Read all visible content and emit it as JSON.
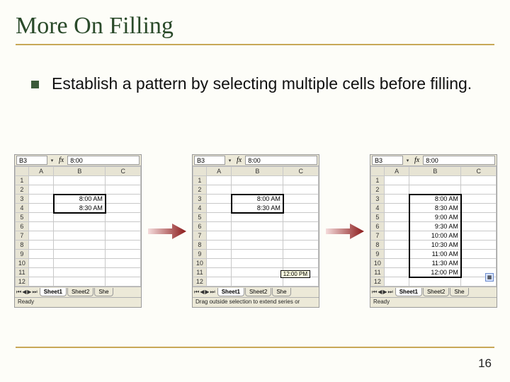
{
  "title": "More On Filling",
  "bullet": "Establish a pattern by selecting multiple cells before filling.",
  "page_number": "16",
  "colors": {
    "title": "#2a4a2a",
    "rule": "#c8a858",
    "bullet_marker": "#3a5a3a",
    "slide_bg": "#fdfdf8",
    "sheet_chrome": "#ece9d8",
    "grid_line": "#c8c8c8",
    "arrow": "#8b1a1a",
    "tooltip_bg": "#ffffe1"
  },
  "arrow": {
    "color": "#8b1a1a",
    "width": 54,
    "height": 26
  },
  "sheet_common": {
    "name_box": "B3",
    "fx_value": "8:00",
    "col_headers": [
      "A",
      "B",
      "C"
    ],
    "row_headers": [
      "1",
      "2",
      "3",
      "4",
      "5",
      "6",
      "7",
      "8",
      "9",
      "10",
      "11",
      "12"
    ],
    "tabs": [
      "Sheet1",
      "Sheet2",
      "She"
    ],
    "active_tab": "Sheet1",
    "tab_nav": [
      "⏮",
      "◀",
      "▶",
      "⏭"
    ]
  },
  "sheet1": {
    "status": "Ready",
    "selection": {
      "type": "solid",
      "rows": [
        3,
        4
      ]
    },
    "cells": {
      "3": "8:00 AM",
      "4": "8:30 AM"
    }
  },
  "sheet2": {
    "status": "Drag outside selection to extend series or",
    "tooltip": {
      "text": "12:00 PM",
      "top_row": 11
    },
    "selection_solid": {
      "rows": [
        3,
        4
      ]
    },
    "selection_dash": {
      "rows": [
        5,
        6,
        7,
        8,
        9,
        10,
        11
      ]
    },
    "cells": {
      "3": "8:00 AM",
      "4": "8:30 AM"
    }
  },
  "sheet3": {
    "status": "Ready",
    "selection": {
      "type": "solid",
      "rows": [
        3,
        4,
        5,
        6,
        7,
        8,
        9,
        10,
        11
      ]
    },
    "autofill_badge_row": 12,
    "cells": {
      "3": "8:00 AM",
      "4": "8:30 AM",
      "5": "9:00 AM",
      "6": "9:30 AM",
      "7": "10:00 AM",
      "8": "10:30 AM",
      "9": "11:00 AM",
      "10": "11:30 AM",
      "11": "12:00 PM"
    }
  }
}
